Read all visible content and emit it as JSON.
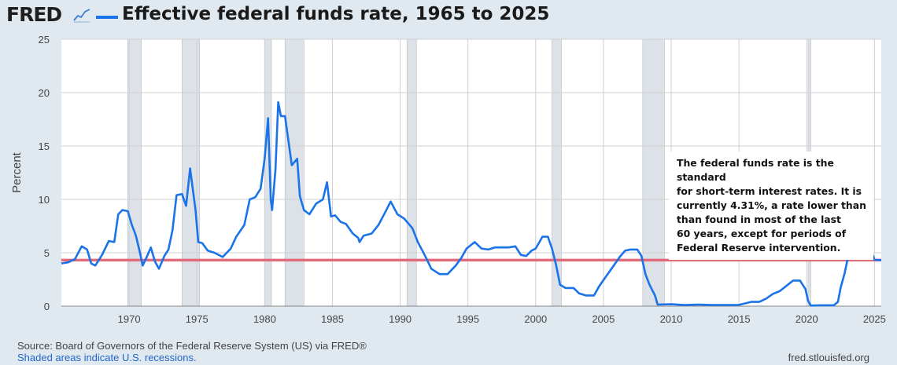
{
  "header": {
    "logo_text": "FRED",
    "logo_mark_icon": "line-chart-icon",
    "title": "Effective federal funds rate, 1965 to 2025"
  },
  "footer": {
    "source": "Source: Board of Governors of the Federal Reserve System (US) via FRED®",
    "recession_note": "Shaded areas indicate U.S. recessions.",
    "site": "fred.stlouisfed.org"
  },
  "annotation": {
    "lines": [
      "The federal funds rate is the standard",
      "for short-term interest rates. It is",
      "currently 4.31%, a rate lower than",
      "than found in most of the last",
      "60 years, except for periods of",
      "Federal Reserve intervention."
    ]
  },
  "colors": {
    "series": "#1a73e8",
    "reference_line": "#e06b7a",
    "recession": "#dde2e8",
    "background": "#e1e9f0",
    "plot_background": "#ffffff",
    "grid": "#d0d0d0"
  },
  "chart_data": {
    "type": "line",
    "title": "Effective federal funds rate, 1965 to 2025",
    "ylabel": "Percent",
    "xlim": [
      1965,
      2025.5
    ],
    "ylim": [
      0,
      25
    ],
    "x_ticks": [
      1970,
      1975,
      1980,
      1985,
      1990,
      1995,
      2000,
      2005,
      2010,
      2015,
      2020,
      2025
    ],
    "y_ticks": [
      0,
      5,
      10,
      15,
      20,
      25
    ],
    "grid": true,
    "reference_line": {
      "y": 4.31
    },
    "recessions": [
      [
        1969.9,
        1970.9
      ],
      [
        1973.9,
        1975.2
      ],
      [
        1980.0,
        1980.5
      ],
      [
        1981.5,
        1982.9
      ],
      [
        1990.5,
        1991.2
      ],
      [
        2001.2,
        2001.9
      ],
      [
        2007.9,
        2009.5
      ],
      [
        2020.1,
        2020.3
      ]
    ],
    "series": [
      {
        "name": "Effective federal funds rate",
        "x": [
          1965.0,
          1965.5,
          1966.0,
          1966.5,
          1966.9,
          1967.2,
          1967.5,
          1968.0,
          1968.5,
          1968.9,
          1969.2,
          1969.5,
          1969.9,
          1970.2,
          1970.5,
          1970.8,
          1971.0,
          1971.3,
          1971.6,
          1971.9,
          1972.2,
          1972.6,
          1972.9,
          1973.2,
          1973.5,
          1973.9,
          1974.2,
          1974.5,
          1974.9,
          1975.1,
          1975.4,
          1975.8,
          1976.3,
          1976.9,
          1977.5,
          1977.9,
          1978.5,
          1978.9,
          1979.3,
          1979.7,
          1980.0,
          1980.25,
          1980.45,
          1980.55,
          1980.8,
          1981.0,
          1981.2,
          1981.5,
          1981.8,
          1982.0,
          1982.4,
          1982.6,
          1982.9,
          1983.3,
          1983.8,
          1984.3,
          1984.6,
          1984.9,
          1985.2,
          1985.6,
          1986.0,
          1986.5,
          1986.9,
          1987.0,
          1987.3,
          1987.9,
          1988.4,
          1988.9,
          1989.3,
          1989.8,
          1990.3,
          1990.9,
          1991.3,
          1991.8,
          1992.3,
          1992.9,
          1993.5,
          1994.1,
          1994.5,
          1994.9,
          1995.5,
          1996.0,
          1996.5,
          1997.0,
          1997.5,
          1998.0,
          1998.5,
          1998.9,
          1999.3,
          1999.7,
          2000.0,
          2000.5,
          2000.9,
          2001.2,
          2001.5,
          2001.8,
          2002.2,
          2002.8,
          2003.2,
          2003.7,
          2004.3,
          2004.7,
          2005.2,
          2005.7,
          2006.2,
          2006.6,
          2007.0,
          2007.5,
          2007.8,
          2008.1,
          2008.4,
          2008.8,
          2009.0,
          2010.0,
          2011.0,
          2012.0,
          2013.0,
          2014.0,
          2015.0,
          2015.9,
          2016.5,
          2017.0,
          2017.5,
          2018.0,
          2018.5,
          2019.0,
          2019.5,
          2019.9,
          2020.1,
          2020.3,
          2021.0,
          2022.0,
          2022.3,
          2022.5,
          2022.8,
          2023.0,
          2023.3,
          2023.6,
          2024.0,
          2024.5,
          2024.7,
          2024.9,
          2025.0,
          2025.5
        ],
        "y": [
          4.0,
          4.1,
          4.4,
          5.6,
          5.3,
          4.0,
          3.8,
          4.8,
          6.1,
          6.0,
          8.6,
          9.0,
          8.9,
          7.6,
          6.6,
          5.0,
          3.8,
          4.6,
          5.5,
          4.2,
          3.5,
          4.7,
          5.3,
          7.1,
          10.4,
          10.5,
          9.4,
          12.9,
          9.0,
          6.0,
          5.9,
          5.2,
          5.0,
          4.6,
          5.4,
          6.5,
          7.6,
          10.0,
          10.2,
          11.0,
          13.8,
          17.6,
          10.0,
          9.0,
          12.8,
          19.1,
          17.8,
          17.8,
          15.1,
          13.2,
          13.8,
          10.3,
          9.0,
          8.6,
          9.6,
          10.0,
          11.6,
          8.4,
          8.5,
          7.9,
          7.7,
          6.8,
          6.4,
          6.0,
          6.6,
          6.8,
          7.6,
          8.8,
          9.8,
          8.6,
          8.2,
          7.3,
          6.0,
          4.8,
          3.5,
          3.0,
          3.0,
          3.8,
          4.5,
          5.4,
          6.0,
          5.4,
          5.3,
          5.5,
          5.5,
          5.5,
          5.6,
          4.8,
          4.7,
          5.2,
          5.4,
          6.5,
          6.5,
          5.4,
          3.9,
          2.0,
          1.7,
          1.7,
          1.2,
          1.0,
          1.0,
          1.9,
          2.8,
          3.7,
          4.6,
          5.2,
          5.3,
          5.3,
          4.7,
          3.0,
          2.0,
          1.0,
          0.15,
          0.18,
          0.1,
          0.15,
          0.1,
          0.1,
          0.12,
          0.4,
          0.4,
          0.7,
          1.15,
          1.4,
          1.9,
          2.4,
          2.4,
          1.6,
          0.5,
          0.05,
          0.08,
          0.08,
          0.4,
          1.7,
          3.1,
          4.3,
          4.8,
          5.3,
          5.33,
          5.33,
          5.1,
          4.7,
          4.33,
          4.31
        ]
      }
    ]
  }
}
